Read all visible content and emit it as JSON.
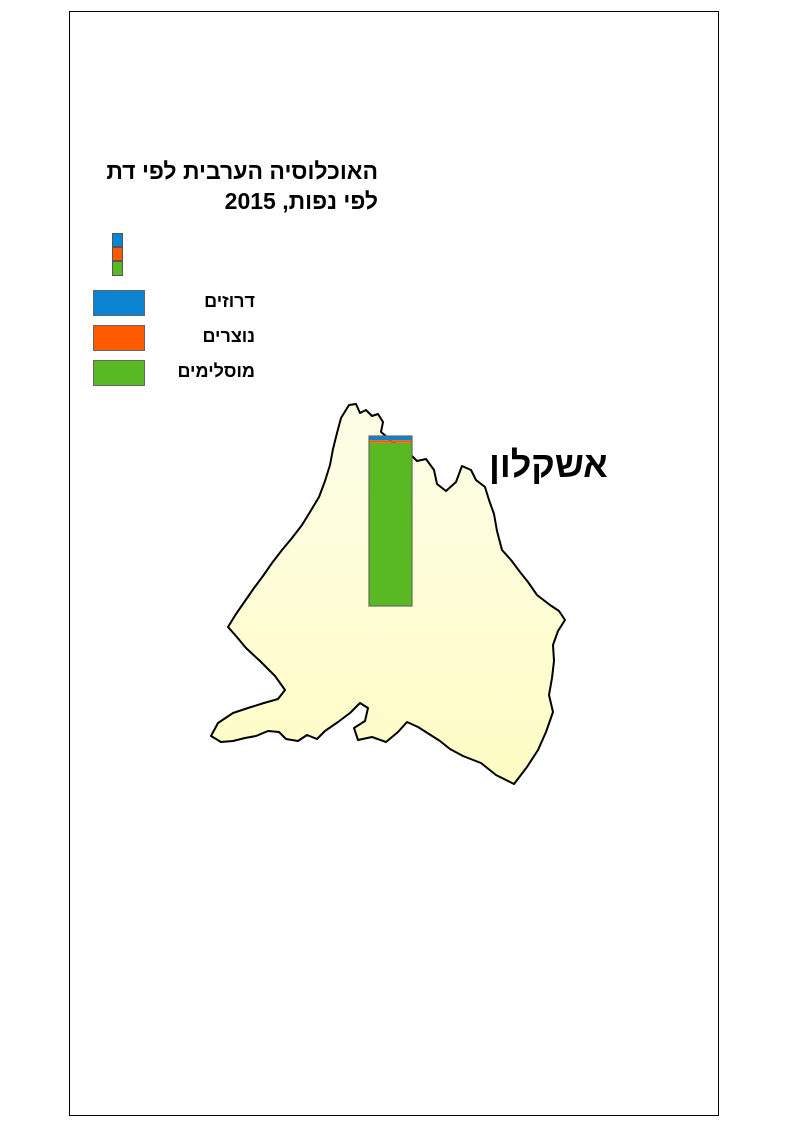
{
  "map": {
    "title_line1": "האוכלוסיה הערבית לפי דת",
    "title_line2": "לפי נפות, 2015",
    "region_label": "אשקלון",
    "legend": [
      {
        "label": "דרוזים",
        "color": "#0a84d2"
      },
      {
        "label": "נוצרים",
        "color": "#ff5a00"
      },
      {
        "label": "מוסלימים",
        "color": "#58b923"
      }
    ],
    "colors": {
      "region_fill_top": "#fdfde8",
      "region_fill_bottom": "#fefdc4",
      "region_outline": "#000000",
      "frame": "#000000"
    }
  },
  "chart_data": {
    "type": "bar",
    "categories": [
      "אשקלון"
    ],
    "stacked": true,
    "series": [
      {
        "name": "מוסלימים",
        "values": [
          96
        ]
      },
      {
        "name": "נוצרים",
        "values": [
          1.5
        ]
      },
      {
        "name": "דרוזים",
        "values": [
          2.5
        ]
      }
    ],
    "unit": "percent"
  }
}
